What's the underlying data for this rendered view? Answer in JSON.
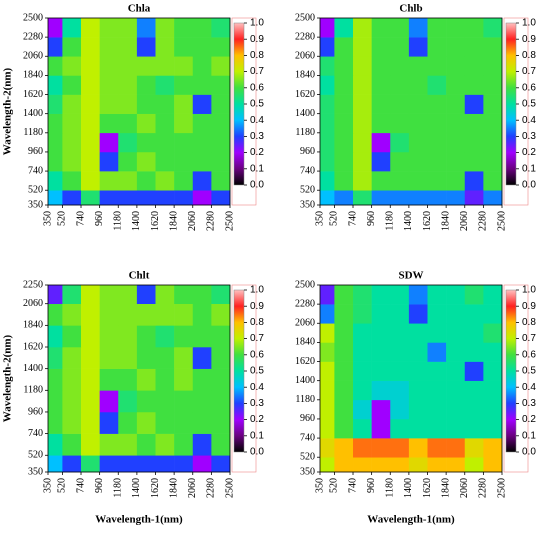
{
  "chart_data": [
    {
      "type": "heatmap",
      "title": "Chla",
      "y_label": "Wavelength-2(nm)",
      "xbins": [
        350,
        520,
        740,
        960,
        1180,
        1400,
        1620,
        1840,
        2060,
        2280,
        2500
      ],
      "ybins": [
        350,
        520,
        740,
        960,
        1180,
        1400,
        1620,
        1840,
        2060,
        2280,
        2500
      ],
      "xlim": [
        350,
        2500
      ],
      "ylim": [
        350,
        2500
      ],
      "xticks": [
        350,
        520,
        740,
        960,
        1180,
        1400,
        1620,
        1840,
        2060,
        2280,
        2500
      ],
      "yticks": [
        350,
        520,
        740,
        960,
        1180,
        1400,
        1620,
        1840,
        2060,
        2280,
        2500
      ],
      "values": [
        [
          0.4,
          0.3,
          0.55,
          0.3,
          0.3,
          0.3,
          0.3,
          0.3,
          0.2,
          0.3
        ],
        [
          0.5,
          0.6,
          0.7,
          0.65,
          0.65,
          0.6,
          0.65,
          0.6,
          0.3,
          0.6
        ],
        [
          0.6,
          0.65,
          0.7,
          0.3,
          0.6,
          0.65,
          0.6,
          0.6,
          0.6,
          0.6
        ],
        [
          0.6,
          0.65,
          0.7,
          0.2,
          0.55,
          0.6,
          0.6,
          0.6,
          0.6,
          0.6
        ],
        [
          0.6,
          0.65,
          0.7,
          0.6,
          0.6,
          0.65,
          0.6,
          0.65,
          0.6,
          0.6
        ],
        [
          0.55,
          0.65,
          0.7,
          0.65,
          0.65,
          0.6,
          0.6,
          0.65,
          0.3,
          0.6
        ],
        [
          0.5,
          0.6,
          0.7,
          0.65,
          0.65,
          0.6,
          0.55,
          0.6,
          0.6,
          0.6
        ],
        [
          0.6,
          0.65,
          0.7,
          0.65,
          0.65,
          0.65,
          0.65,
          0.65,
          0.6,
          0.65
        ],
        [
          0.3,
          0.6,
          0.7,
          0.65,
          0.65,
          0.3,
          0.65,
          0.6,
          0.6,
          0.6
        ],
        [
          0.2,
          0.5,
          0.7,
          0.65,
          0.65,
          0.35,
          0.65,
          0.6,
          0.6,
          0.55
        ]
      ],
      "zlim": [
        0,
        1
      ],
      "colorscale": [
        "#000000",
        "#6a0080",
        "#a000ff",
        "#2040ff",
        "#00c0ff",
        "#00e0a0",
        "#40e040",
        "#c0f000",
        "#ffc000",
        "#ff2020",
        "#ffc0c0"
      ],
      "colorbar_ticks": [
        {
          "value": 0,
          "label": "0.0"
        },
        0.1,
        0.2,
        0.3,
        0.4,
        0.5,
        0.6,
        0.7,
        0.8,
        0.9,
        {
          "value": 1,
          "label": "1.0"
        }
      ]
    },
    {
      "type": "heatmap",
      "title": "Chlb",
      "xbins": [
        350,
        520,
        740,
        960,
        1180,
        1400,
        1620,
        1840,
        2060,
        2280,
        2500
      ],
      "ybins": [
        350,
        520,
        740,
        960,
        1180,
        1400,
        1620,
        1840,
        2060,
        2280,
        2500
      ],
      "xlim": [
        350,
        2500
      ],
      "ylim": [
        350,
        2500
      ],
      "xticks": [
        350,
        520,
        740,
        960,
        1180,
        1400,
        1620,
        1840,
        2060,
        2280,
        2500
      ],
      "yticks": [
        350,
        520,
        740,
        960,
        1180,
        1400,
        1620,
        1840,
        2060,
        2280,
        2500
      ],
      "values": [
        [
          0.4,
          0.35,
          0.55,
          0.35,
          0.35,
          0.35,
          0.35,
          0.35,
          0.25,
          0.35
        ],
        [
          0.5,
          0.6,
          0.68,
          0.6,
          0.6,
          0.6,
          0.6,
          0.6,
          0.3,
          0.6
        ],
        [
          0.55,
          0.6,
          0.68,
          0.3,
          0.6,
          0.6,
          0.6,
          0.6,
          0.6,
          0.6
        ],
        [
          0.55,
          0.6,
          0.68,
          0.2,
          0.55,
          0.6,
          0.6,
          0.6,
          0.6,
          0.6
        ],
        [
          0.55,
          0.6,
          0.68,
          0.6,
          0.6,
          0.6,
          0.6,
          0.6,
          0.6,
          0.6
        ],
        [
          0.55,
          0.6,
          0.68,
          0.6,
          0.6,
          0.6,
          0.6,
          0.6,
          0.3,
          0.6
        ],
        [
          0.5,
          0.6,
          0.68,
          0.6,
          0.6,
          0.6,
          0.55,
          0.6,
          0.6,
          0.6
        ],
        [
          0.55,
          0.6,
          0.68,
          0.6,
          0.6,
          0.6,
          0.6,
          0.6,
          0.6,
          0.6
        ],
        [
          0.3,
          0.6,
          0.68,
          0.6,
          0.6,
          0.3,
          0.6,
          0.6,
          0.6,
          0.6
        ],
        [
          0.2,
          0.5,
          0.68,
          0.6,
          0.6,
          0.35,
          0.6,
          0.6,
          0.6,
          0.55
        ]
      ],
      "zlim": [
        0,
        1
      ],
      "colorscale": [
        "#000000",
        "#6a0080",
        "#a000ff",
        "#2040ff",
        "#00c0ff",
        "#00e0a0",
        "#40e040",
        "#c0f000",
        "#ffc000",
        "#ff2020",
        "#ffc0c0"
      ],
      "colorbar_ticks": [
        {
          "value": 0,
          "label": "0.0"
        },
        0.1,
        0.2,
        0.3,
        0.4,
        0.5,
        0.6,
        0.7,
        0.8,
        0.9,
        {
          "value": 1,
          "label": "1.0"
        }
      ]
    },
    {
      "type": "heatmap",
      "title": "Chlt",
      "x_label": "Wavelength-1(nm)",
      "y_label": "Wavelength-2(nm)",
      "xbins": [
        350,
        520,
        740,
        960,
        1180,
        1400,
        1620,
        1840,
        2060,
        2280,
        2500
      ],
      "ybins": [
        350,
        520,
        740,
        960,
        1180,
        1400,
        1620,
        1840,
        2060,
        2250
      ],
      "xlim": [
        350,
        2500
      ],
      "ylim": [
        350,
        2250
      ],
      "xticks": [
        350,
        520,
        740,
        960,
        1180,
        1400,
        1620,
        1840,
        2060,
        2280,
        2500
      ],
      "yticks": [
        350,
        520,
        740,
        960,
        1180,
        1400,
        1620,
        1840,
        2060,
        2250
      ],
      "values": [
        [
          0.4,
          0.3,
          0.55,
          0.3,
          0.3,
          0.3,
          0.3,
          0.3,
          0.2,
          0.3
        ],
        [
          0.5,
          0.6,
          0.7,
          0.65,
          0.65,
          0.6,
          0.65,
          0.6,
          0.3,
          0.6
        ],
        [
          0.6,
          0.65,
          0.7,
          0.3,
          0.6,
          0.65,
          0.6,
          0.6,
          0.6,
          0.6
        ],
        [
          0.6,
          0.65,
          0.7,
          0.2,
          0.55,
          0.6,
          0.6,
          0.6,
          0.6,
          0.6
        ],
        [
          0.6,
          0.65,
          0.7,
          0.6,
          0.6,
          0.65,
          0.6,
          0.65,
          0.6,
          0.6
        ],
        [
          0.55,
          0.65,
          0.7,
          0.65,
          0.65,
          0.6,
          0.6,
          0.65,
          0.3,
          0.6
        ],
        [
          0.5,
          0.6,
          0.7,
          0.65,
          0.65,
          0.6,
          0.55,
          0.6,
          0.6,
          0.6
        ],
        [
          0.6,
          0.65,
          0.7,
          0.65,
          0.65,
          0.65,
          0.65,
          0.65,
          0.6,
          0.65
        ],
        [
          0.25,
          0.55,
          0.7,
          0.65,
          0.65,
          0.3,
          0.65,
          0.6,
          0.6,
          0.55
        ]
      ],
      "zlim": [
        0,
        1
      ],
      "colorscale": [
        "#000000",
        "#6a0080",
        "#a000ff",
        "#2040ff",
        "#00c0ff",
        "#00e0a0",
        "#40e040",
        "#c0f000",
        "#ffc000",
        "#ff2020",
        "#ffc0c0"
      ],
      "colorbar_ticks": [
        {
          "value": 0,
          "label": "0.0"
        },
        0.1,
        0.2,
        0.3,
        0.4,
        0.5,
        0.6,
        0.7,
        0.8,
        0.9,
        {
          "value": 1,
          "label": "1.0"
        }
      ]
    },
    {
      "type": "heatmap",
      "title": "SDW",
      "x_label": "Wavelength-1(nm)",
      "xbins": [
        350,
        520,
        740,
        960,
        1180,
        1400,
        1620,
        1840,
        2060,
        2280,
        2500
      ],
      "ybins": [
        350,
        520,
        740,
        960,
        1180,
        1400,
        1620,
        1840,
        2060,
        2280,
        2500
      ],
      "xlim": [
        350,
        2500
      ],
      "ylim": [
        350,
        2500
      ],
      "xticks": [
        350,
        520,
        740,
        960,
        1180,
        1400,
        1620,
        1840,
        2060,
        2280,
        2500
      ],
      "yticks": [
        350,
        520,
        740,
        960,
        1180,
        1400,
        1620,
        1840,
        2060,
        2280,
        2500
      ],
      "values": [
        [
          0.7,
          0.8,
          0.8,
          0.8,
          0.8,
          0.75,
          0.8,
          0.8,
          0.7,
          0.8
        ],
        [
          0.75,
          0.8,
          0.85,
          0.85,
          0.85,
          0.8,
          0.85,
          0.85,
          0.75,
          0.8
        ],
        [
          0.7,
          0.6,
          0.5,
          0.2,
          0.5,
          0.5,
          0.5,
          0.5,
          0.5,
          0.5
        ],
        [
          0.7,
          0.6,
          0.45,
          0.2,
          0.45,
          0.5,
          0.5,
          0.5,
          0.5,
          0.5
        ],
        [
          0.7,
          0.6,
          0.5,
          0.45,
          0.45,
          0.5,
          0.5,
          0.5,
          0.5,
          0.5
        ],
        [
          0.7,
          0.6,
          0.5,
          0.5,
          0.5,
          0.5,
          0.5,
          0.5,
          0.3,
          0.5
        ],
        [
          0.65,
          0.6,
          0.5,
          0.5,
          0.5,
          0.5,
          0.35,
          0.5,
          0.5,
          0.5
        ],
        [
          0.7,
          0.6,
          0.5,
          0.5,
          0.5,
          0.5,
          0.5,
          0.5,
          0.5,
          0.55
        ],
        [
          0.35,
          0.6,
          0.55,
          0.5,
          0.5,
          0.3,
          0.5,
          0.5,
          0.5,
          0.5
        ],
        [
          0.25,
          0.6,
          0.55,
          0.5,
          0.5,
          0.35,
          0.5,
          0.5,
          0.55,
          0.5
        ]
      ],
      "zlim": [
        0,
        1
      ],
      "colorscale": [
        "#000000",
        "#6a0080",
        "#a000ff",
        "#2040ff",
        "#00c0ff",
        "#00e0a0",
        "#40e040",
        "#c0f000",
        "#ffc000",
        "#ff2020",
        "#ffc0c0"
      ],
      "colorbar_ticks": [
        {
          "value": 0,
          "label": "0.0"
        },
        0.1,
        0.2,
        0.3,
        0.4,
        0.5,
        0.6,
        0.7,
        0.8,
        0.9,
        {
          "value": 1,
          "label": "1.0"
        }
      ]
    }
  ]
}
